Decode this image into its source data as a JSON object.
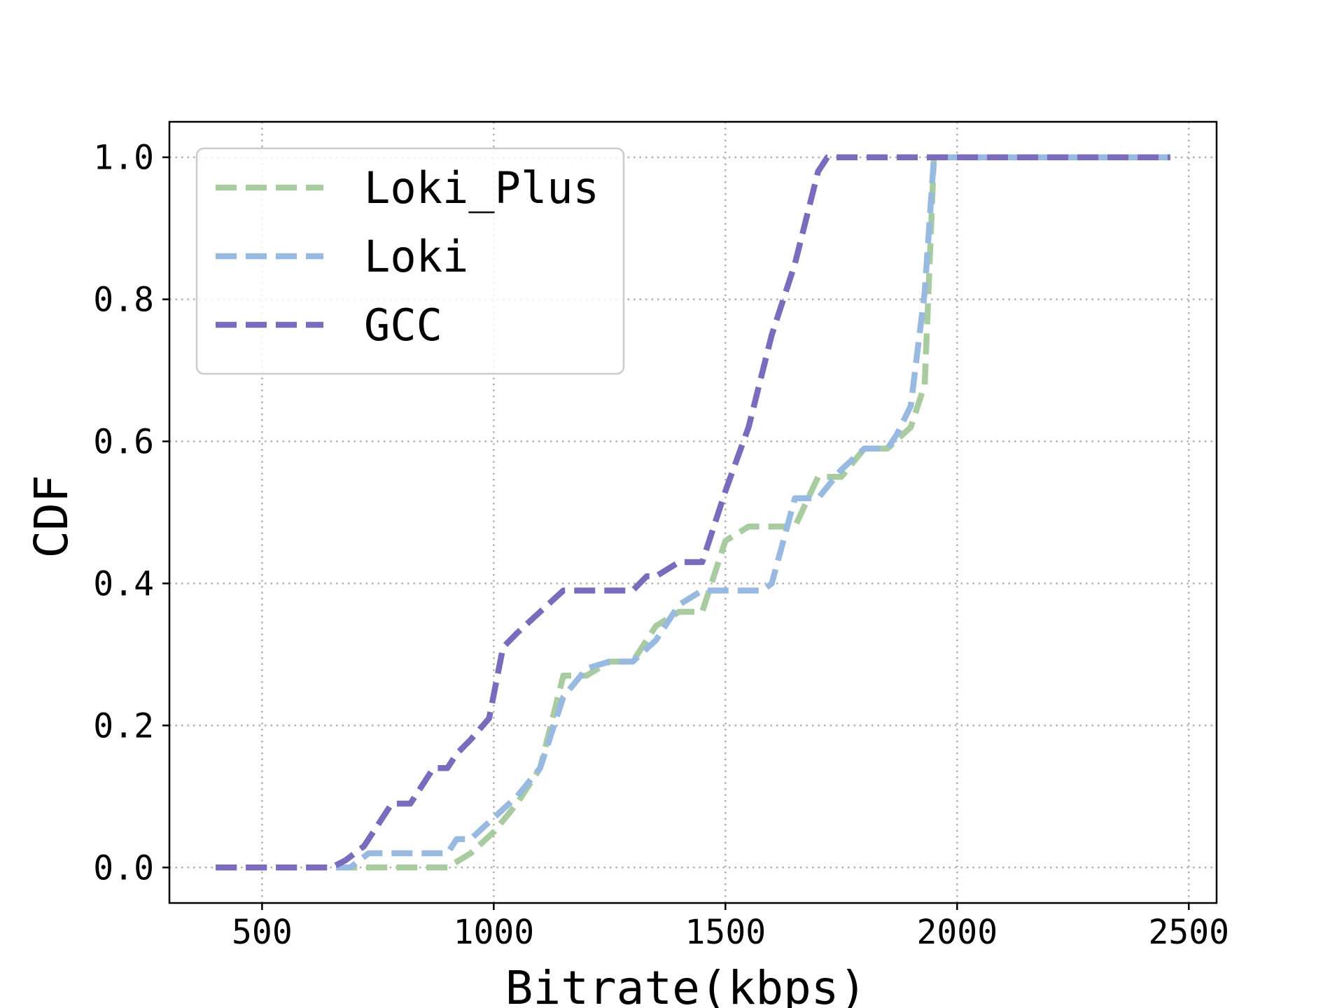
{
  "colors": {
    "Loki_Plus": "#a8cba0",
    "Loki": "#98b9e0",
    "GCC": "#7b6bbd"
  },
  "legend": {
    "position": "upper-left",
    "items": [
      {
        "label": "Loki_Plus",
        "color": "#a8cba0"
      },
      {
        "label": "Loki",
        "color": "#98b9e0"
      },
      {
        "label": "GCC",
        "color": "#7b6bbd"
      }
    ]
  },
  "chart_data": {
    "type": "line",
    "title": "",
    "xlabel": "Bitrate(kbps)",
    "ylabel": "CDF",
    "xlim": [
      300,
      2560
    ],
    "ylim": [
      -0.05,
      1.05
    ],
    "x_ticks": [
      500,
      1000,
      1500,
      2000,
      2500
    ],
    "x_tick_labels": [
      "500",
      "1000",
      "1500",
      "2000",
      "2500"
    ],
    "y_ticks": [
      0.0,
      0.2,
      0.4,
      0.6,
      0.8,
      1.0
    ],
    "y_tick_labels": [
      "0.0",
      "0.2",
      "0.4",
      "0.6",
      "0.8",
      "1.0"
    ],
    "grid": true,
    "line_style": "dashed",
    "series": [
      {
        "name": "Loki_Plus",
        "color": "#a8cba0",
        "x": [
          400,
          650,
          700,
          750,
          800,
          850,
          900,
          950,
          1000,
          1050,
          1100,
          1150,
          1200,
          1250,
          1300,
          1350,
          1400,
          1450,
          1500,
          1550,
          1600,
          1650,
          1700,
          1750,
          1800,
          1850,
          1900,
          1930,
          1950,
          2000,
          2460
        ],
        "y": [
          0.0,
          0.0,
          0.0,
          0.0,
          0.0,
          0.0,
          0.0,
          0.02,
          0.05,
          0.09,
          0.14,
          0.27,
          0.27,
          0.29,
          0.29,
          0.34,
          0.36,
          0.36,
          0.46,
          0.48,
          0.48,
          0.48,
          0.55,
          0.55,
          0.59,
          0.59,
          0.62,
          0.68,
          1.0,
          1.0,
          1.0
        ]
      },
      {
        "name": "Loki",
        "color": "#98b9e0",
        "x": [
          400,
          650,
          690,
          730,
          750,
          800,
          850,
          900,
          920,
          950,
          1000,
          1050,
          1100,
          1150,
          1200,
          1250,
          1300,
          1350,
          1400,
          1450,
          1500,
          1550,
          1580,
          1600,
          1650,
          1700,
          1750,
          1800,
          1850,
          1870,
          1900,
          1930,
          1950,
          2460
        ],
        "y": [
          0.0,
          0.0,
          0.0,
          0.02,
          0.02,
          0.02,
          0.02,
          0.02,
          0.04,
          0.04,
          0.07,
          0.1,
          0.14,
          0.24,
          0.28,
          0.29,
          0.29,
          0.32,
          0.37,
          0.39,
          0.39,
          0.39,
          0.39,
          0.4,
          0.52,
          0.52,
          0.56,
          0.59,
          0.59,
          0.61,
          0.65,
          0.81,
          1.0,
          1.0
        ]
      },
      {
        "name": "GCC",
        "color": "#7b6bbd",
        "x": [
          400,
          650,
          680,
          720,
          740,
          780,
          820,
          850,
          870,
          900,
          920,
          950,
          990,
          1020,
          1050,
          1100,
          1150,
          1200,
          1250,
          1300,
          1330,
          1350,
          1400,
          1450,
          1500,
          1550,
          1600,
          1650,
          1700,
          1720,
          1800,
          2000,
          2460
        ],
        "y": [
          0.0,
          0.0,
          0.01,
          0.03,
          0.05,
          0.09,
          0.09,
          0.12,
          0.14,
          0.14,
          0.16,
          0.18,
          0.21,
          0.31,
          0.33,
          0.36,
          0.39,
          0.39,
          0.39,
          0.39,
          0.41,
          0.41,
          0.43,
          0.43,
          0.53,
          0.62,
          0.75,
          0.85,
          0.98,
          1.0,
          1.0,
          1.0,
          1.0
        ]
      }
    ]
  }
}
